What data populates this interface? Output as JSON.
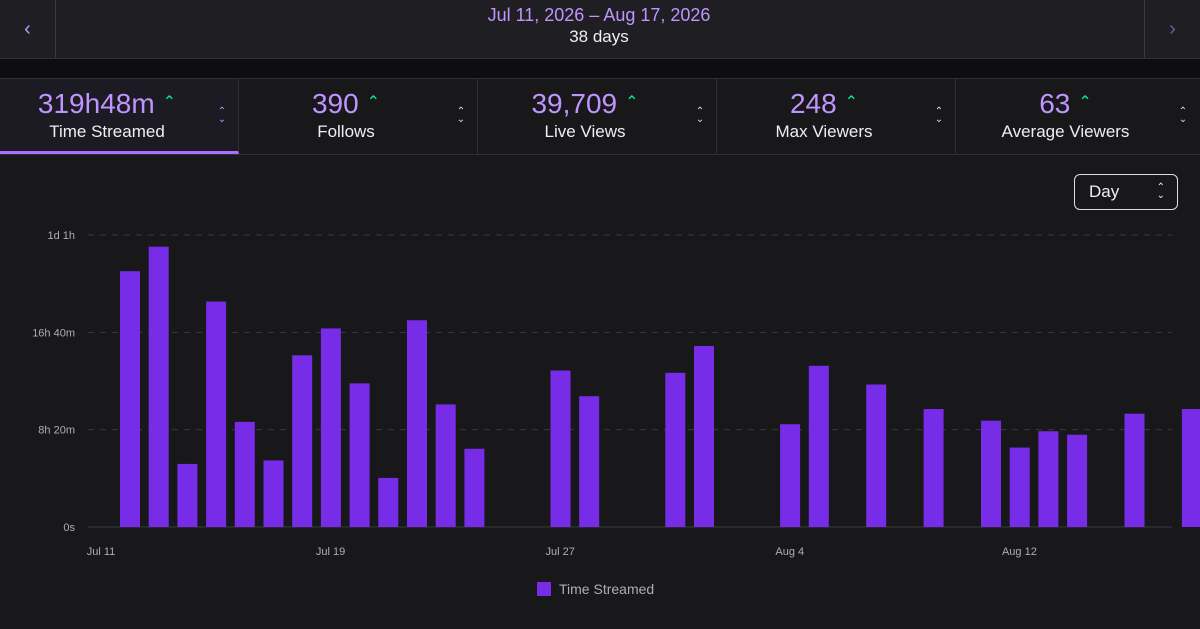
{
  "date_nav": {
    "prev_icon": "chevron-left-icon",
    "next_icon": "chevron-right-icon",
    "range": "Jul 11, 2026 – Aug 17, 2026",
    "days": "38 days"
  },
  "stats": [
    {
      "value": "319h48m",
      "label": "Time Streamed",
      "trend": "up",
      "active": true
    },
    {
      "value": "390",
      "label": "Follows",
      "trend": "up",
      "active": false
    },
    {
      "value": "39,709",
      "label": "Live Views",
      "trend": "up",
      "active": false
    },
    {
      "value": "248",
      "label": "Max Viewers",
      "trend": "up",
      "active": false
    },
    {
      "value": "63",
      "label": "Average Viewers",
      "trend": "up",
      "active": false
    }
  ],
  "colors": {
    "accent": "#bf94ff",
    "bar": "#772ce8",
    "trend_up": "#00f593"
  },
  "granularity": {
    "selected": "Day"
  },
  "chart_data": {
    "type": "bar",
    "title": "",
    "ylabel": "",
    "xlabel": "",
    "y_unit": "hours",
    "ylim_hours": [
      0,
      25
    ],
    "y_ticks": [
      "0s",
      "8h 20m",
      "16h 40m",
      "1d 1h"
    ],
    "x_ticks": [
      "Jul 11",
      "Jul 19",
      "Jul 27",
      "Aug 4",
      "Aug 12"
    ],
    "legend": {
      "position": "bottom",
      "series_name": "Time Streamed"
    },
    "grid": true,
    "categories": [
      "Jul 11",
      "Jul 12",
      "Jul 13",
      "Jul 14",
      "Jul 15",
      "Jul 16",
      "Jul 17",
      "Jul 18",
      "Jul 19",
      "Jul 20",
      "Jul 21",
      "Jul 22",
      "Jul 23",
      "Jul 24",
      "Jul 25",
      "Jul 26",
      "Jul 27",
      "Jul 28",
      "Jul 29",
      "Jul 30",
      "Jul 31",
      "Aug 1",
      "Aug 2",
      "Aug 3",
      "Aug 4",
      "Aug 5",
      "Aug 6",
      "Aug 7",
      "Aug 8",
      "Aug 9",
      "Aug 10",
      "Aug 11",
      "Aug 12",
      "Aug 13",
      "Aug 14",
      "Aug 15",
      "Aug 16",
      "Aug 17"
    ],
    "values": [
      21.9,
      24.0,
      5.4,
      19.3,
      9.0,
      5.7,
      14.7,
      17.0,
      12.3,
      4.2,
      17.7,
      10.5,
      6.7,
      0,
      0,
      13.4,
      11.2,
      0,
      0,
      13.2,
      15.5,
      0,
      0,
      8.8,
      13.8,
      0,
      12.2,
      0,
      10.1,
      0,
      9.1,
      6.8,
      8.2,
      7.9,
      0,
      9.7,
      0,
      10.1
    ]
  }
}
